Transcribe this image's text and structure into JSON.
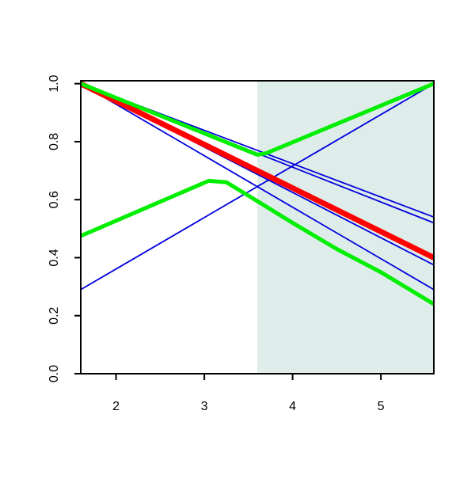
{
  "chart_data": {
    "type": "line",
    "xlim": [
      1.6,
      5.6
    ],
    "ylim": [
      0,
      1.01
    ],
    "xticks": [
      2,
      3,
      4,
      5
    ],
    "yticks": [
      {
        "value": 0,
        "label": "0.0"
      },
      {
        "value": 0.2,
        "label": "0.2"
      },
      {
        "value": 0.4,
        "label": "0.4"
      },
      {
        "value": 0.6,
        "label": "0.6"
      },
      {
        "value": 0.8,
        "label": "0.8"
      },
      {
        "value": 1,
        "label": "1.0"
      }
    ],
    "shaded_region": {
      "x": [
        3.6,
        5.6
      ],
      "color": "#deecea"
    },
    "series": [
      {
        "color": "#0000dd",
        "line_width": 1.8,
        "x": [
          1.6,
          5.6
        ],
        "values": [
          1.0,
          0.54
        ]
      },
      {
        "color": "#0000dd",
        "line_width": 1.8,
        "x": [
          1.6,
          5.6
        ],
        "values": [
          1.0,
          0.52
        ]
      },
      {
        "color": "#0000dd",
        "line_width": 1.8,
        "x": [
          1.6,
          5.6
        ],
        "values": [
          1.0,
          0.375
        ]
      },
      {
        "color": "#0000dd",
        "line_width": 1.8,
        "x": [
          1.6,
          5.6
        ],
        "values": [
          1.0,
          0.29
        ]
      },
      {
        "color": "#0000dd",
        "line_width": 1.8,
        "x": [
          1.6,
          5.6
        ],
        "values": [
          0.29,
          1.0
        ]
      },
      {
        "color": "#ff0000",
        "line_width": 7,
        "x": [
          1.6,
          5.6
        ],
        "values": [
          1.0,
          0.4
        ]
      },
      {
        "color": "#00ee00",
        "line_width": 5,
        "x": [
          1.6,
          3.6,
          3.7,
          5.6
        ],
        "values": [
          1.0,
          0.755,
          0.76,
          1.0
        ]
      },
      {
        "color": "#00ee00",
        "line_width": 5,
        "x": [
          1.6,
          3.05,
          3.25,
          3.6,
          4.0,
          4.5,
          5.0,
          5.6
        ],
        "values": [
          0.475,
          0.665,
          0.66,
          0.595,
          0.52,
          0.43,
          0.35,
          0.24
        ]
      }
    ]
  }
}
